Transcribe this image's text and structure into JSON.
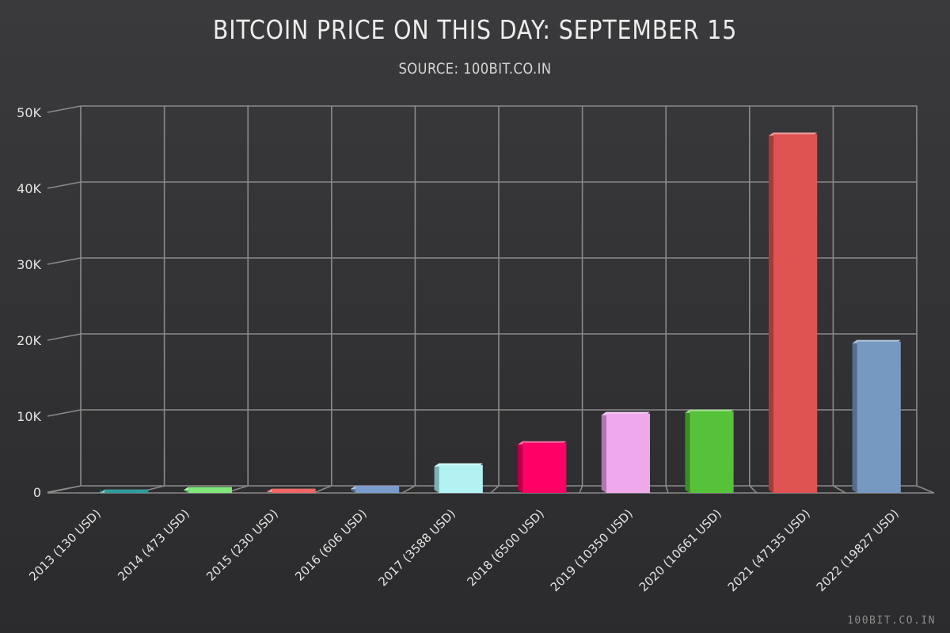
{
  "chart_data": {
    "type": "bar",
    "title": "BITCOIN PRICE ON THIS DAY: SEPTEMBER 15",
    "subtitle": "SOURCE: 100BIT.CO.IN",
    "categories": [
      "2013 (130 USD)",
      "2014 (473 USD)",
      "2015 (230 USD)",
      "2016 (606 USD)",
      "2017 (3588 USD)",
      "2018 (6500 USD)",
      "2019 (10350 USD)",
      "2020 (10661 USD)",
      "2021 (47135 USD)",
      "2022 (19827 USD)"
    ],
    "values": [
      130,
      473,
      230,
      606,
      3588,
      6500,
      10350,
      10661,
      47135,
      19827
    ],
    "colors": [
      "#2f9c9e",
      "#7fe57a",
      "#f26666",
      "#7a9ccc",
      "#b3f2f2",
      "#ff0066",
      "#f0a8ec",
      "#55c23a",
      "#e05353",
      "#7699c2"
    ],
    "ylim": [
      0,
      50000
    ],
    "yticks": [
      {
        "value": 0,
        "label": "0"
      },
      {
        "value": 10000,
        "label": "10K"
      },
      {
        "value": 20000,
        "label": "20K"
      },
      {
        "value": 30000,
        "label": "30K"
      },
      {
        "value": 40000,
        "label": "40K"
      },
      {
        "value": 50000,
        "label": "50K"
      }
    ],
    "grid": true,
    "xlabel": "",
    "ylabel": ""
  },
  "watermark": "100BIT.CO.IN"
}
